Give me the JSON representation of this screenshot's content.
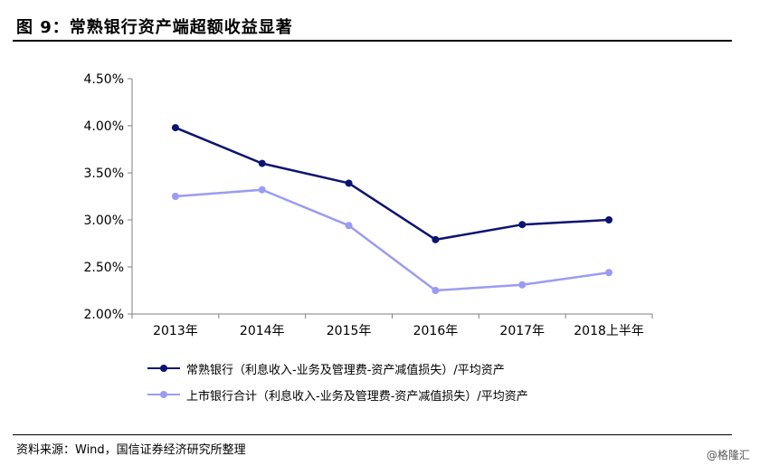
{
  "header": {
    "title": "图 9：常熟银行资产端超额收益显著"
  },
  "chart_data": {
    "type": "line",
    "categories": [
      "2013年",
      "2014年",
      "2015年",
      "2016年",
      "2017年",
      "2018上半年"
    ],
    "ylim": [
      2.0,
      4.5
    ],
    "yticks": [
      "2.00%",
      "2.50%",
      "3.00%",
      "3.50%",
      "4.00%",
      "4.50%"
    ],
    "ytick_values": [
      2.0,
      2.5,
      3.0,
      3.5,
      4.0,
      4.5
    ],
    "grid": false,
    "legend_position": "bottom",
    "series": [
      {
        "name": "常熟银行（利息收入-业务及管理费-资产减值损失）/平均资产",
        "color": "#0d1370",
        "values": [
          3.98,
          3.6,
          3.39,
          2.79,
          2.95,
          3.0
        ]
      },
      {
        "name": "上市银行合计（利息收入-业务及管理费-资产减值损失）/平均资产",
        "color": "#9a9cf2",
        "values": [
          3.25,
          3.32,
          2.94,
          2.25,
          2.31,
          2.44
        ]
      }
    ]
  },
  "footer": {
    "source": "资料来源：Wind，国信证券经济研究所整理",
    "watermark": "@格隆汇"
  }
}
